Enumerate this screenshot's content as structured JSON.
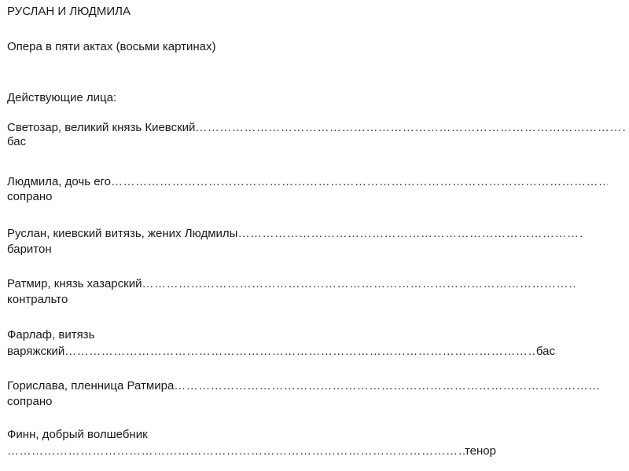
{
  "title": "РУСЛАН И ЛЮДМИЛА",
  "subtitle": "Опера в пяти актах (восьми картинах)",
  "cast_heading": "Действующие лица:",
  "cast": [
    {
      "name": "Светозар, великий князь Киевский",
      "voice": "бас"
    },
    {
      "name": "Людмила, дочь его",
      "voice": "сопрано"
    },
    {
      "name": "Руслан, киевский витязь, жених Людмилы",
      "voice": "баритон"
    },
    {
      "name": "Ратмир, князь хазарский",
      "voice": "контральто"
    },
    {
      "name": "Фарлаф, витязь",
      "name_cont": "варяжский",
      "voice": "бас"
    },
    {
      "name": "Горислава, пленница Ратмира ",
      "voice": "сопрано"
    },
    {
      "name": "Финн, добрый волшебник",
      "voice": "тенор"
    }
  ]
}
